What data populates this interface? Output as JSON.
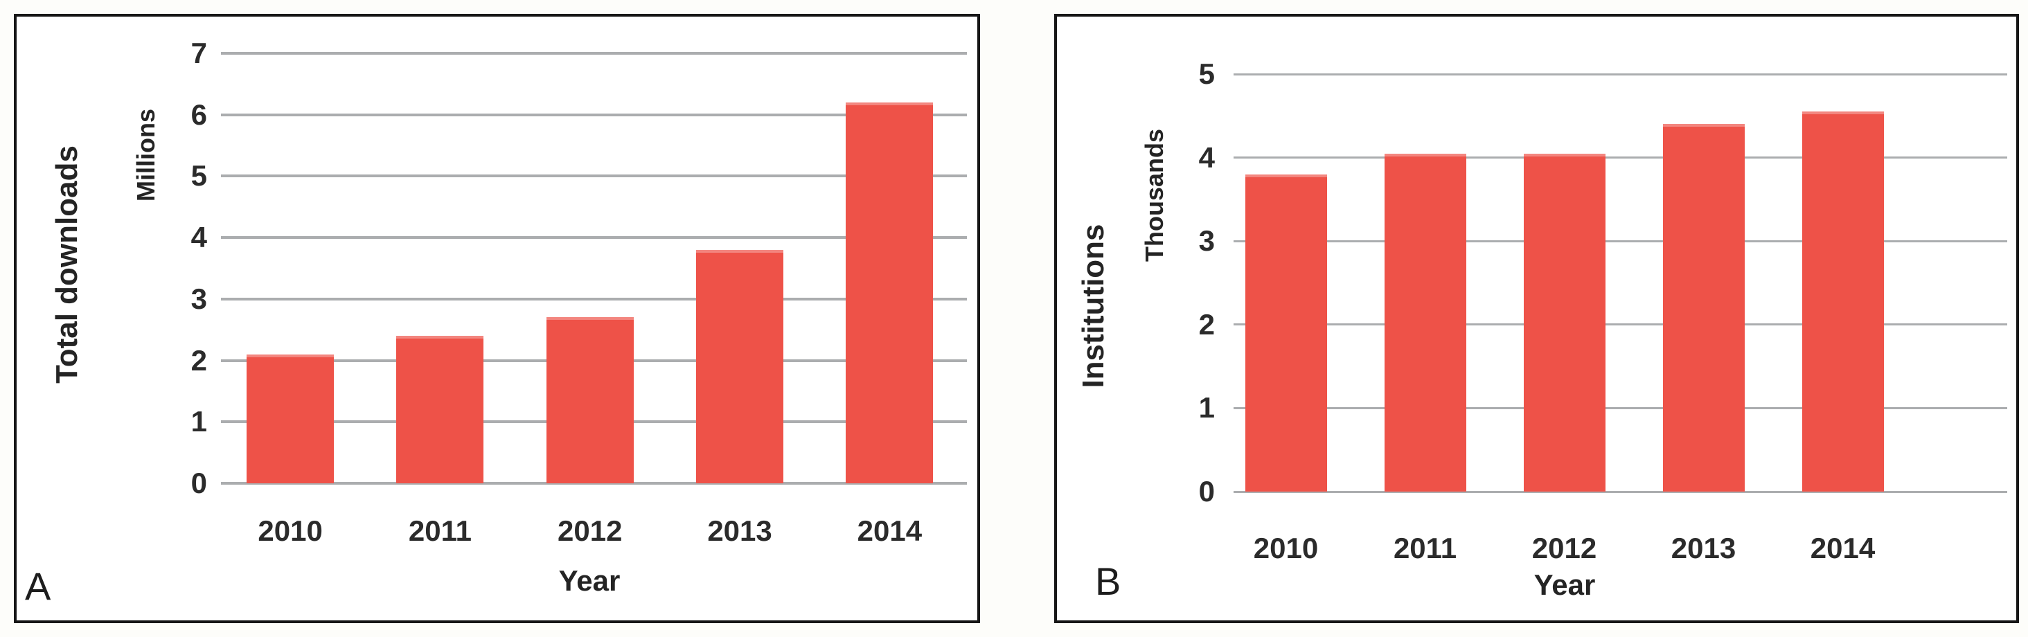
{
  "colors": {
    "bar": "#ee5248",
    "bar_top_highlight": "rgba(255,255,255,0.30)",
    "grid": "#abadaf",
    "text": "#262626",
    "panel_border": "#161616",
    "background": "#fdfdfa"
  },
  "chart_data": [
    {
      "type": "bar",
      "panel_label": "A",
      "title": "",
      "categories": [
        "2010",
        "2011",
        "2012",
        "2013",
        "2014"
      ],
      "values": [
        2.1,
        2.4,
        2.7,
        3.8,
        6.2
      ],
      "xlabel": "Year",
      "ylabel": "Total downloads",
      "y_unit_label": "Millions",
      "ylim": [
        0,
        7
      ],
      "yticks": [
        0,
        1,
        2,
        3,
        4,
        5,
        6,
        7
      ],
      "grid": "horizontal",
      "legend": "none"
    },
    {
      "type": "bar",
      "panel_label": "B",
      "title": "",
      "categories": [
        "2010",
        "2011",
        "2012",
        "2013",
        "2014"
      ],
      "values": [
        3.8,
        4.05,
        4.05,
        4.4,
        4.55
      ],
      "xlabel": "Year",
      "ylabel": "Institutions",
      "y_unit_label": "Thousands",
      "ylim": [
        0,
        5
      ],
      "yticks": [
        0,
        1,
        2,
        3,
        4,
        5
      ],
      "grid": "horizontal",
      "legend": "none"
    }
  ]
}
